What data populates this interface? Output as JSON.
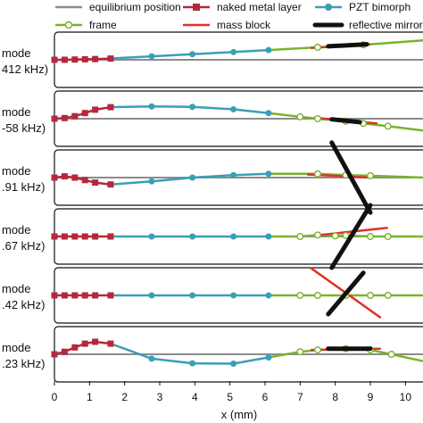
{
  "chart_data": {
    "type": "line",
    "xlabel": "x (mm)",
    "xlim": [
      0,
      10.5
    ],
    "xticks": [
      "0",
      "1",
      "2",
      "3",
      "4",
      "5",
      "6",
      "7",
      "8",
      "9",
      "10"
    ],
    "legend": [
      {
        "key": "equilibrium",
        "label": "equilibrium position",
        "color": "#8c8c8c",
        "marker": "none"
      },
      {
        "key": "metal",
        "label": "naked metal layer",
        "color": "#b5283c",
        "marker": "square"
      },
      {
        "key": "pzt",
        "label": "PZT bimorph",
        "color": "#3a9fb5",
        "marker": "circle"
      },
      {
        "key": "frame",
        "label": "frame",
        "color": "#7ab32e",
        "marker": "open-circle"
      },
      {
        "key": "mass",
        "label": "mass block",
        "color": "#e0322b",
        "marker": "none"
      },
      {
        "key": "mirror",
        "label": "reflective mirror",
        "color": "#111111",
        "marker": "none"
      }
    ],
    "panels": [
      {
        "mode_label": "mode",
        "freq_label": "412 kHz)",
        "frame_range": [
          6.1,
          10.5
        ],
        "x": [
          0,
          0.29,
          0.58,
          0.87,
          1.16,
          1.6,
          2.77,
          3.93,
          5.1,
          6.1,
          7.5,
          8.8,
          10.5
        ],
        "y": [
          0,
          0,
          0.02,
          0.04,
          0.06,
          0.1,
          0.28,
          0.45,
          0.62,
          0.78,
          1.0,
          1.2,
          1.55
        ],
        "mass": [
          [
            7.3,
            0.95
          ],
          [
            9.0,
            1.25
          ]
        ],
        "mirror": [
          [
            7.8,
            1.08
          ],
          [
            8.9,
            1.24
          ]
        ]
      },
      {
        "mode_label": "mode",
        "freq_label": "-58 kHz)",
        "frame_range": [
          6.1,
          10.5
        ],
        "x": [
          0,
          0.29,
          0.58,
          0.87,
          1.16,
          1.6,
          2.77,
          3.93,
          5.1,
          6.1,
          7.0,
          7.5,
          8.3,
          8.8,
          9.5,
          10.5
        ],
        "y": [
          0,
          0.05,
          0.2,
          0.45,
          0.72,
          0.92,
          0.98,
          0.95,
          0.75,
          0.45,
          0.15,
          0,
          -0.2,
          -0.38,
          -0.6,
          -0.95
        ],
        "mass": [
          [
            7.4,
            0.08
          ],
          [
            9.2,
            -0.38
          ]
        ],
        "mirror": [
          [
            7.9,
            -0.05
          ],
          [
            8.7,
            -0.28
          ]
        ]
      },
      {
        "mode_label": "mode",
        "freq_label": ".91 kHz)",
        "frame_range": [
          6.1,
          10.5
        ],
        "x": [
          0,
          0.29,
          0.58,
          0.87,
          1.16,
          1.6,
          2.77,
          3.93,
          5.1,
          6.1,
          7.5,
          8.3,
          9.0,
          10.5
        ],
        "y": [
          0,
          0.1,
          0.0,
          -0.2,
          -0.4,
          -0.55,
          -0.3,
          0.0,
          0.2,
          0.3,
          0.3,
          0.2,
          0.15,
          0.0
        ],
        "mass": [
          [
            7.2,
            0.25
          ],
          [
            9.0,
            0.0
          ]
        ],
        "mirror": [
          [
            7.9,
            2.8
          ],
          [
            9.0,
            -2.8
          ]
        ]
      },
      {
        "mode_label": "mode",
        "freq_label": ".67 kHz)",
        "frame_range": [
          6.1,
          10.5
        ],
        "x": [
          0,
          0.29,
          0.58,
          0.87,
          1.16,
          1.6,
          2.77,
          3.93,
          5.1,
          6.1,
          7.0,
          7.5,
          8.0,
          8.3,
          9.0,
          9.5,
          10.5
        ],
        "y": [
          0,
          0,
          0,
          0,
          0,
          0,
          0,
          0,
          0,
          0,
          0,
          0.12,
          0.05,
          0.08,
          0.0,
          0.0,
          0.0
        ],
        "mass": [
          [
            7.5,
            0.1
          ],
          [
            9.5,
            0.7
          ]
        ],
        "mirror": [
          [
            7.9,
            -2.5
          ],
          [
            9.0,
            2.5
          ]
        ]
      },
      {
        "mode_label": "mode",
        "freq_label": ".42 kHz)",
        "frame_range": [
          6.1,
          10.5
        ],
        "x": [
          0,
          0.29,
          0.58,
          0.87,
          1.16,
          1.6,
          2.77,
          3.93,
          5.1,
          6.1,
          7.0,
          7.5,
          8.3,
          9.0,
          9.5,
          10.5
        ],
        "y": [
          0,
          0,
          0,
          0,
          0,
          0,
          0,
          0,
          0,
          0,
          0,
          0,
          0,
          0,
          0,
          0
        ],
        "mass": [
          [
            7.3,
            2.2
          ],
          [
            9.3,
            -1.8
          ]
        ],
        "mirror": [
          [
            7.8,
            -1.5
          ],
          [
            8.8,
            1.8
          ]
        ]
      },
      {
        "mode_label": "mode",
        "freq_label": ".23 kHz)",
        "frame_range": [
          6.1,
          10.5
        ],
        "x": [
          0,
          0.29,
          0.58,
          0.87,
          1.16,
          1.6,
          2.77,
          3.93,
          5.1,
          6.1,
          7.0,
          7.5,
          8.3,
          9.0,
          9.6,
          10.5
        ],
        "y": [
          0,
          0.2,
          0.55,
          0.85,
          1.0,
          0.85,
          -0.35,
          -0.72,
          -0.75,
          -0.25,
          0.2,
          0.35,
          0.45,
          0.35,
          0.0,
          -0.55
        ],
        "mass": [
          [
            7.3,
            0.35
          ],
          [
            9.3,
            0.45
          ]
        ],
        "mirror": [
          [
            7.8,
            0.45
          ],
          [
            9.0,
            0.45
          ]
        ]
      }
    ]
  }
}
